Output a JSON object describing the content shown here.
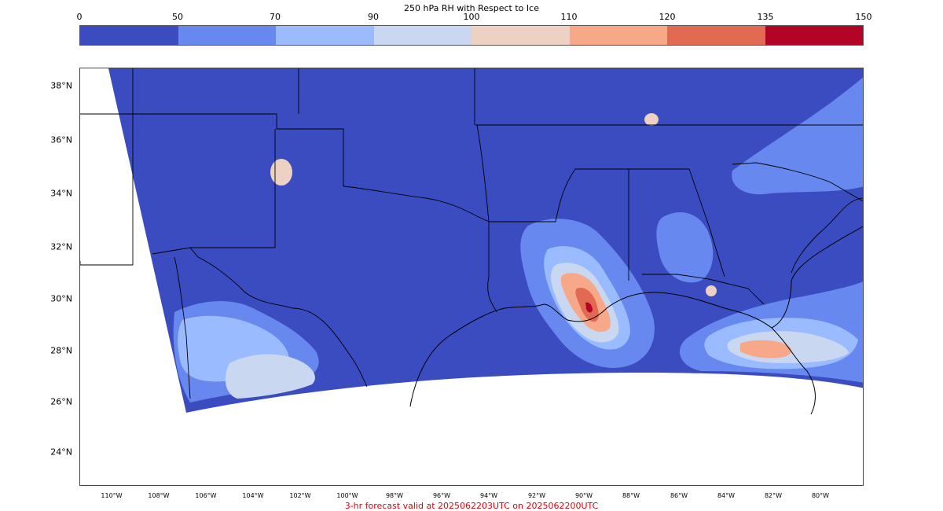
{
  "colorbar": {
    "title": "250 hPa RH with Respect to Ice",
    "ticks": [
      "0",
      "50",
      "70",
      "90",
      "100",
      "110",
      "120",
      "135",
      "150"
    ],
    "colors": [
      "#3b4cc0",
      "#6788ee",
      "#9abbff",
      "#c9d7f0",
      "#edd1c2",
      "#f7a889",
      "#e26952",
      "#b40426"
    ]
  },
  "map": {
    "lat_labels": [
      "38°N",
      "36°N",
      "34°N",
      "32°N",
      "30°N",
      "28°N",
      "26°N",
      "24°N"
    ],
    "lon_labels": [
      "110°W",
      "108°W",
      "106°W",
      "104°W",
      "102°W",
      "100°W",
      "98°W",
      "96°W",
      "94°W",
      "92°W",
      "90°W",
      "88°W",
      "86°W",
      "84°W",
      "82°W",
      "80°W"
    ],
    "background_color": "#3b4cc0",
    "border_color": "#000000"
  },
  "caption": "3-hr forecast valid at 2025062203UTC on 2025062200UTC"
}
